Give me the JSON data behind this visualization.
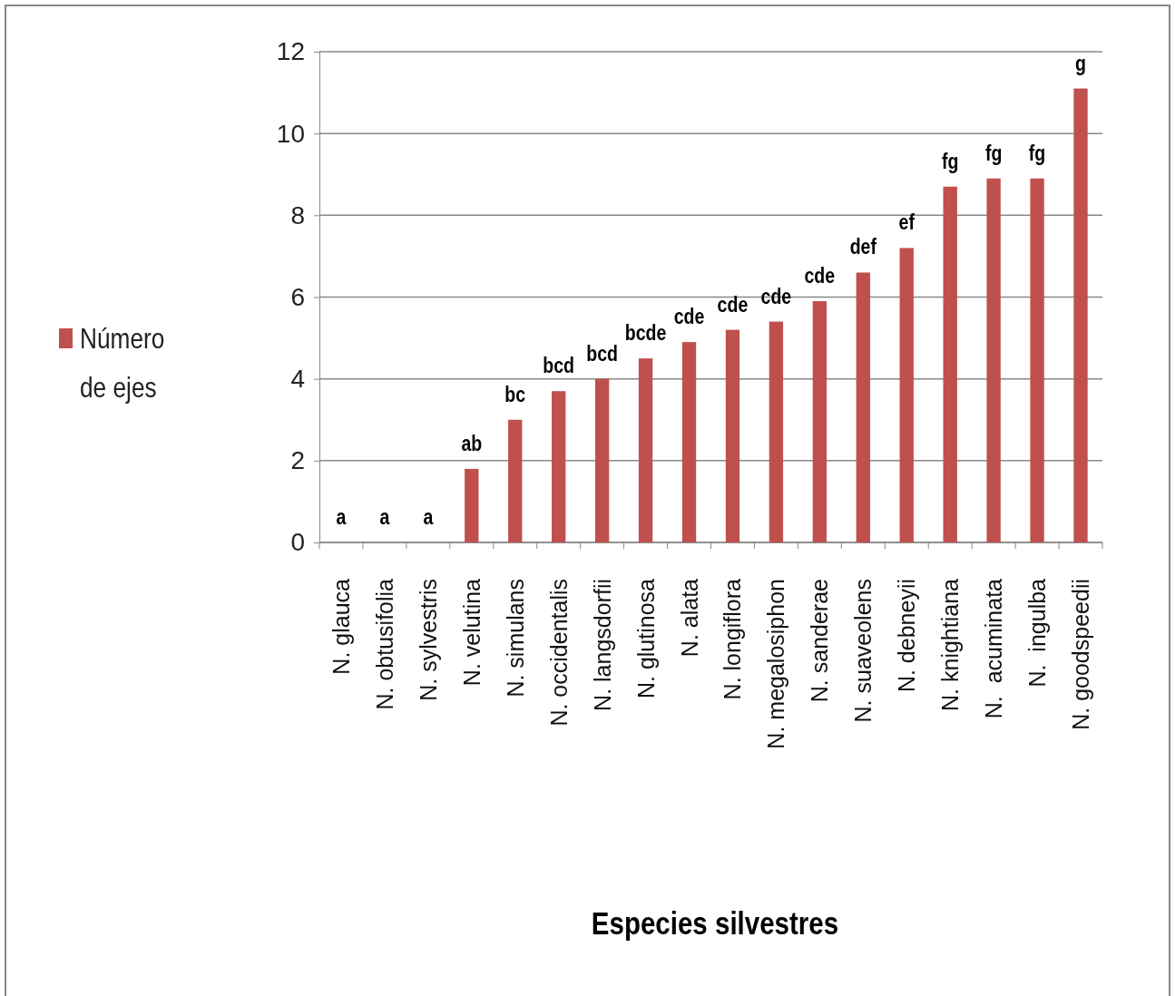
{
  "chart_data": {
    "type": "bar",
    "xlabel": "Especies silvestres",
    "categories": [
      "N. glauca",
      "N. obtusifolia",
      "N. sylvestris",
      "N. velutina",
      "N. simulans",
      "N. occidentalis",
      "N. langsdorfii",
      "N. glutinosa",
      "N. alata",
      "N. longiflora",
      "N. megalosiphon",
      "N. sanderae",
      "N. suaveolens",
      "N. debneyii",
      "N. knightiana",
      "N.  acuminata",
      "N.  ingulba",
      "N. goodspeedii"
    ],
    "series": [
      {
        "name": "Número de ejes",
        "color": "#c0504d",
        "values": [
          0,
          0,
          0,
          1.8,
          3.0,
          3.7,
          4.0,
          4.5,
          4.9,
          5.2,
          5.4,
          5.9,
          6.6,
          7.2,
          8.7,
          8.9,
          8.9,
          11.1
        ]
      }
    ],
    "ylim": [
      0,
      12
    ],
    "yticks": [
      0,
      2,
      4,
      6,
      8,
      10,
      12
    ],
    "grid": "y",
    "legend": "left",
    "annotations": [
      {
        "text": "a",
        "x": "N. glauca",
        "y": 0
      },
      {
        "text": "a",
        "x": "N. obtusifolia",
        "y": 0
      },
      {
        "text": "a",
        "x": "N. sylvestris",
        "y": 0
      },
      {
        "text": "ab",
        "x": "N. velutina",
        "y": 1.8
      },
      {
        "text": "bc",
        "x": "N. simulans",
        "y": 3.0
      },
      {
        "text": "bcd",
        "x": "N. occidentalis",
        "y": 3.7
      },
      {
        "text": "bcd",
        "x": "N. langsdorfii",
        "y": 4.0
      },
      {
        "text": "bcde",
        "x": "N. glutinosa",
        "y": 4.5
      },
      {
        "text": "cde",
        "x": "N. alata",
        "y": 4.9
      },
      {
        "text": "cde",
        "x": "N. longiflora",
        "y": 5.2
      },
      {
        "text": "cde",
        "x": "N. megalosiphon",
        "y": 5.4
      },
      {
        "text": "cde",
        "x": "N. sanderae",
        "y": 5.9
      },
      {
        "text": "def",
        "x": "N. suaveolens",
        "y": 6.6
      },
      {
        "text": "ef",
        "x": "N. debneyii",
        "y": 7.2
      },
      {
        "text": "fg",
        "x": "N. knightiana",
        "y": 8.7
      },
      {
        "text": "fg",
        "x": "N.  acuminata",
        "y": 8.9
      },
      {
        "text": "fg",
        "x": "N.  ingulba",
        "y": 8.9
      },
      {
        "text": "g",
        "x": "N. goodspeedii",
        "y": 11.1
      }
    ]
  }
}
